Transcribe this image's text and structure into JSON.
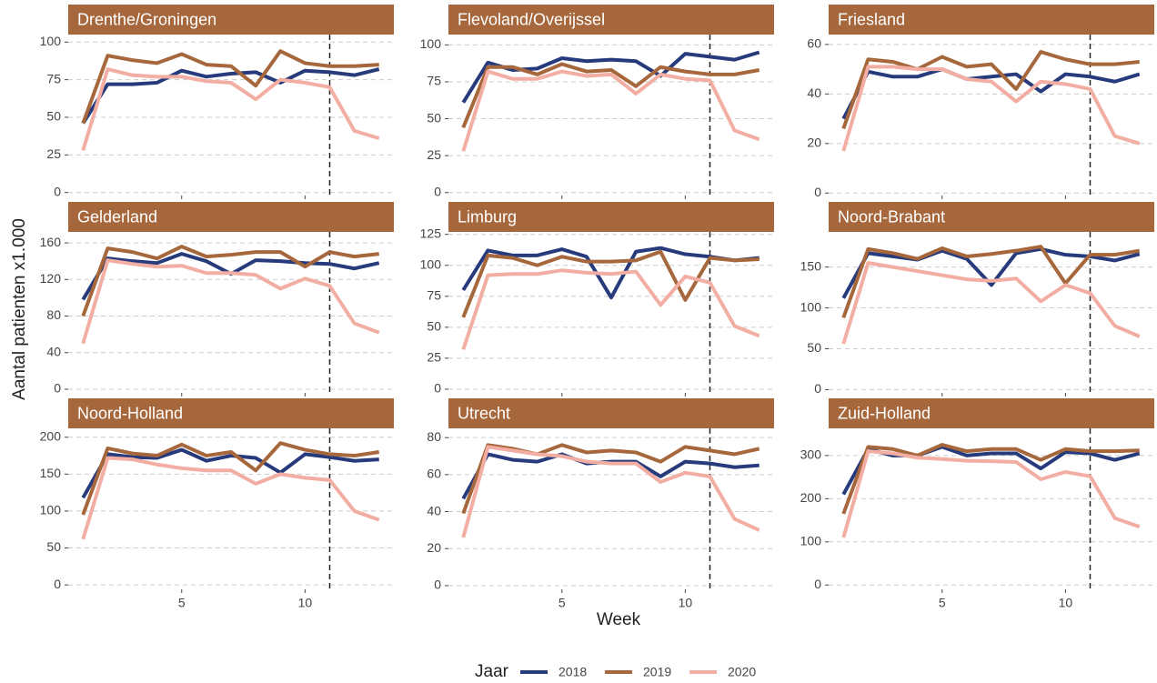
{
  "chart_data": [
    {
      "type": "line",
      "title": "Drenthe/Groningen",
      "x": [
        1,
        2,
        3,
        4,
        5,
        6,
        7,
        8,
        9,
        10,
        11,
        12,
        13
      ],
      "xlim": [
        0.4,
        13.6
      ],
      "xticks": [
        5,
        10
      ],
      "ylim": [
        -2,
        105
      ],
      "yticks": [
        0,
        25,
        50,
        75,
        100
      ],
      "vline": 11,
      "grid": true,
      "series": [
        {
          "name": "2018",
          "color": "#263a7c",
          "values": [
            46,
            72,
            72,
            73,
            81,
            77,
            79,
            80,
            73,
            81,
            80,
            78,
            82
          ]
        },
        {
          "name": "2019",
          "color": "#a5673b",
          "values": [
            46,
            91,
            88,
            86,
            92,
            85,
            84,
            71,
            94,
            86,
            84,
            84,
            85
          ]
        },
        {
          "name": "2020",
          "color": "#f3aea3",
          "values": [
            28,
            82,
            78,
            77,
            77,
            74,
            73,
            62,
            75,
            73,
            70,
            41,
            36
          ]
        }
      ]
    },
    {
      "type": "line",
      "title": "Flevoland/Overijssel",
      "x": [
        1,
        2,
        3,
        4,
        5,
        6,
        7,
        8,
        9,
        10,
        11,
        12,
        13
      ],
      "xlim": [
        0.4,
        13.6
      ],
      "xticks": [
        5,
        10
      ],
      "ylim": [
        -2,
        107
      ],
      "yticks": [
        0,
        25,
        50,
        75,
        100
      ],
      "vline": 11,
      "grid": true,
      "series": [
        {
          "name": "2018",
          "color": "#263a7c",
          "values": [
            61,
            88,
            83,
            84,
            91,
            89,
            90,
            89,
            79,
            94,
            92,
            90,
            95
          ]
        },
        {
          "name": "2019",
          "color": "#a5673b",
          "values": [
            44,
            85,
            85,
            80,
            87,
            82,
            83,
            72,
            85,
            82,
            80,
            80,
            83
          ]
        },
        {
          "name": "2020",
          "color": "#f3aea3",
          "values": [
            28,
            82,
            77,
            77,
            82,
            79,
            80,
            67,
            80,
            77,
            76,
            42,
            36
          ]
        }
      ]
    },
    {
      "type": "line",
      "title": "Friesland",
      "x": [
        1,
        2,
        3,
        4,
        5,
        6,
        7,
        8,
        9,
        10,
        11,
        12,
        13
      ],
      "xlim": [
        0.4,
        13.6
      ],
      "xticks": [
        5,
        10
      ],
      "ylim": [
        -1,
        64
      ],
      "yticks": [
        0,
        20,
        40,
        60
      ],
      "vline": 11,
      "grid": true,
      "series": [
        {
          "name": "2018",
          "color": "#263a7c",
          "values": [
            30,
            49,
            47,
            47,
            50,
            46,
            47,
            48,
            41,
            48,
            47,
            45,
            48
          ]
        },
        {
          "name": "2019",
          "color": "#a5673b",
          "values": [
            26,
            54,
            53,
            50,
            55,
            51,
            52,
            42,
            57,
            54,
            52,
            52,
            53
          ]
        },
        {
          "name": "2020",
          "color": "#f3aea3",
          "values": [
            17,
            51,
            51,
            50,
            50,
            46,
            45,
            37,
            45,
            44,
            42,
            23,
            20
          ]
        }
      ]
    },
    {
      "type": "line",
      "title": "Gelderland",
      "x": [
        1,
        2,
        3,
        4,
        5,
        6,
        7,
        8,
        9,
        10,
        11,
        12,
        13
      ],
      "xlim": [
        0.4,
        13.6
      ],
      "xticks": [
        5,
        10
      ],
      "ylim": [
        -4,
        172
      ],
      "yticks": [
        0,
        40,
        80,
        120,
        160
      ],
      "vline": 11,
      "grid": true,
      "series": [
        {
          "name": "2018",
          "color": "#263a7c",
          "values": [
            98,
            143,
            140,
            138,
            148,
            140,
            126,
            141,
            140,
            138,
            137,
            132,
            138
          ]
        },
        {
          "name": "2019",
          "color": "#a5673b",
          "values": [
            80,
            154,
            150,
            143,
            156,
            145,
            147,
            150,
            150,
            134,
            150,
            145,
            148
          ]
        },
        {
          "name": "2020",
          "color": "#f3aea3",
          "values": [
            50,
            141,
            137,
            134,
            135,
            127,
            127,
            125,
            110,
            121,
            113,
            72,
            62
          ]
        }
      ]
    },
    {
      "type": "line",
      "title": "Limburg",
      "x": [
        1,
        2,
        3,
        4,
        5,
        6,
        7,
        8,
        9,
        10,
        11,
        12,
        13
      ],
      "xlim": [
        0.4,
        13.6
      ],
      "xticks": [
        5,
        10
      ],
      "ylim": [
        -3,
        127
      ],
      "yticks": [
        0,
        25,
        50,
        75,
        100,
        125
      ],
      "vline": 11,
      "grid": true,
      "series": [
        {
          "name": "2018",
          "color": "#263a7c",
          "values": [
            80,
            112,
            108,
            108,
            113,
            107,
            74,
            111,
            114,
            109,
            107,
            104,
            106
          ]
        },
        {
          "name": "2019",
          "color": "#a5673b",
          "values": [
            58,
            108,
            106,
            100,
            107,
            103,
            103,
            104,
            111,
            72,
            106,
            104,
            105
          ]
        },
        {
          "name": "2020",
          "color": "#f3aea3",
          "values": [
            32,
            92,
            93,
            93,
            96,
            94,
            93,
            95,
            68,
            91,
            86,
            51,
            43
          ]
        }
      ]
    },
    {
      "type": "line",
      "title": "Noord-Brabant",
      "x": [
        1,
        2,
        3,
        4,
        5,
        6,
        7,
        8,
        9,
        10,
        11,
        12,
        13
      ],
      "xlim": [
        0.4,
        13.6
      ],
      "xticks": [
        5,
        10
      ],
      "ylim": [
        -4,
        193
      ],
      "yticks": [
        0,
        50,
        100,
        150
      ],
      "vline": 11,
      "grid": true,
      "series": [
        {
          "name": "2018",
          "color": "#263a7c",
          "values": [
            112,
            167,
            163,
            159,
            170,
            160,
            128,
            167,
            172,
            165,
            163,
            158,
            166
          ]
        },
        {
          "name": "2019",
          "color": "#a5673b",
          "values": [
            88,
            172,
            167,
            160,
            173,
            163,
            166,
            170,
            175,
            130,
            165,
            165,
            170
          ]
        },
        {
          "name": "2020",
          "color": "#f3aea3",
          "values": [
            56,
            155,
            150,
            145,
            140,
            135,
            133,
            136,
            108,
            128,
            118,
            78,
            65
          ]
        }
      ]
    },
    {
      "type": "line",
      "title": "Noord-Holland",
      "x": [
        1,
        2,
        3,
        4,
        5,
        6,
        7,
        8,
        9,
        10,
        11,
        12,
        13
      ],
      "xlim": [
        0.4,
        13.6
      ],
      "xticks": [
        5,
        10
      ],
      "ylim": [
        -6,
        212
      ],
      "yticks": [
        0,
        50,
        100,
        150,
        200
      ],
      "vline": 11,
      "grid": true,
      "series": [
        {
          "name": "2018",
          "color": "#263a7c",
          "values": [
            118,
            177,
            173,
            172,
            183,
            168,
            175,
            172,
            152,
            177,
            173,
            168,
            170
          ]
        },
        {
          "name": "2019",
          "color": "#a5673b",
          "values": [
            95,
            185,
            178,
            175,
            190,
            175,
            180,
            155,
            192,
            183,
            177,
            175,
            180
          ]
        },
        {
          "name": "2020",
          "color": "#f3aea3",
          "values": [
            62,
            172,
            170,
            163,
            158,
            155,
            155,
            137,
            150,
            145,
            142,
            100,
            88
          ]
        }
      ]
    },
    {
      "type": "line",
      "title": "Utrecht",
      "x": [
        1,
        2,
        3,
        4,
        5,
        6,
        7,
        8,
        9,
        10,
        11,
        12,
        13
      ],
      "xlim": [
        0.4,
        13.6
      ],
      "xticks": [
        5,
        10
      ],
      "ylim": [
        -2,
        85
      ],
      "yticks": [
        0,
        20,
        40,
        60,
        80
      ],
      "vline": 11,
      "grid": true,
      "series": [
        {
          "name": "2018",
          "color": "#263a7c",
          "values": [
            47,
            71,
            68,
            67,
            71,
            66,
            67,
            67,
            59,
            67,
            66,
            64,
            65
          ]
        },
        {
          "name": "2019",
          "color": "#a5673b",
          "values": [
            39,
            76,
            74,
            71,
            76,
            72,
            73,
            72,
            67,
            75,
            73,
            71,
            74
          ]
        },
        {
          "name": "2020",
          "color": "#f3aea3",
          "values": [
            26,
            75,
            73,
            71,
            70,
            67,
            66,
            66,
            56,
            61,
            59,
            36,
            30
          ]
        }
      ]
    },
    {
      "type": "line",
      "title": "Zuid-Holland",
      "x": [
        1,
        2,
        3,
        4,
        5,
        6,
        7,
        8,
        9,
        10,
        11,
        12,
        13
      ],
      "xlim": [
        0.4,
        13.6
      ],
      "xticks": [
        5,
        10
      ],
      "ylim": [
        -10,
        363
      ],
      "yticks": [
        0,
        100,
        200,
        300
      ],
      "vline": 11,
      "grid": true,
      "series": [
        {
          "name": "2018",
          "color": "#263a7c",
          "values": [
            210,
            315,
            300,
            300,
            320,
            300,
            305,
            305,
            270,
            308,
            305,
            290,
            305
          ]
        },
        {
          "name": "2019",
          "color": "#a5673b",
          "values": [
            165,
            320,
            315,
            300,
            325,
            310,
            315,
            315,
            290,
            315,
            310,
            310,
            312
          ]
        },
        {
          "name": "2020",
          "color": "#f3aea3",
          "values": [
            110,
            310,
            305,
            295,
            292,
            288,
            287,
            285,
            245,
            262,
            252,
            155,
            135
          ]
        }
      ]
    }
  ],
  "xlabel": "Week",
  "ylabel": "Aantal patienten x1.000",
  "legend_title": "Jaar"
}
